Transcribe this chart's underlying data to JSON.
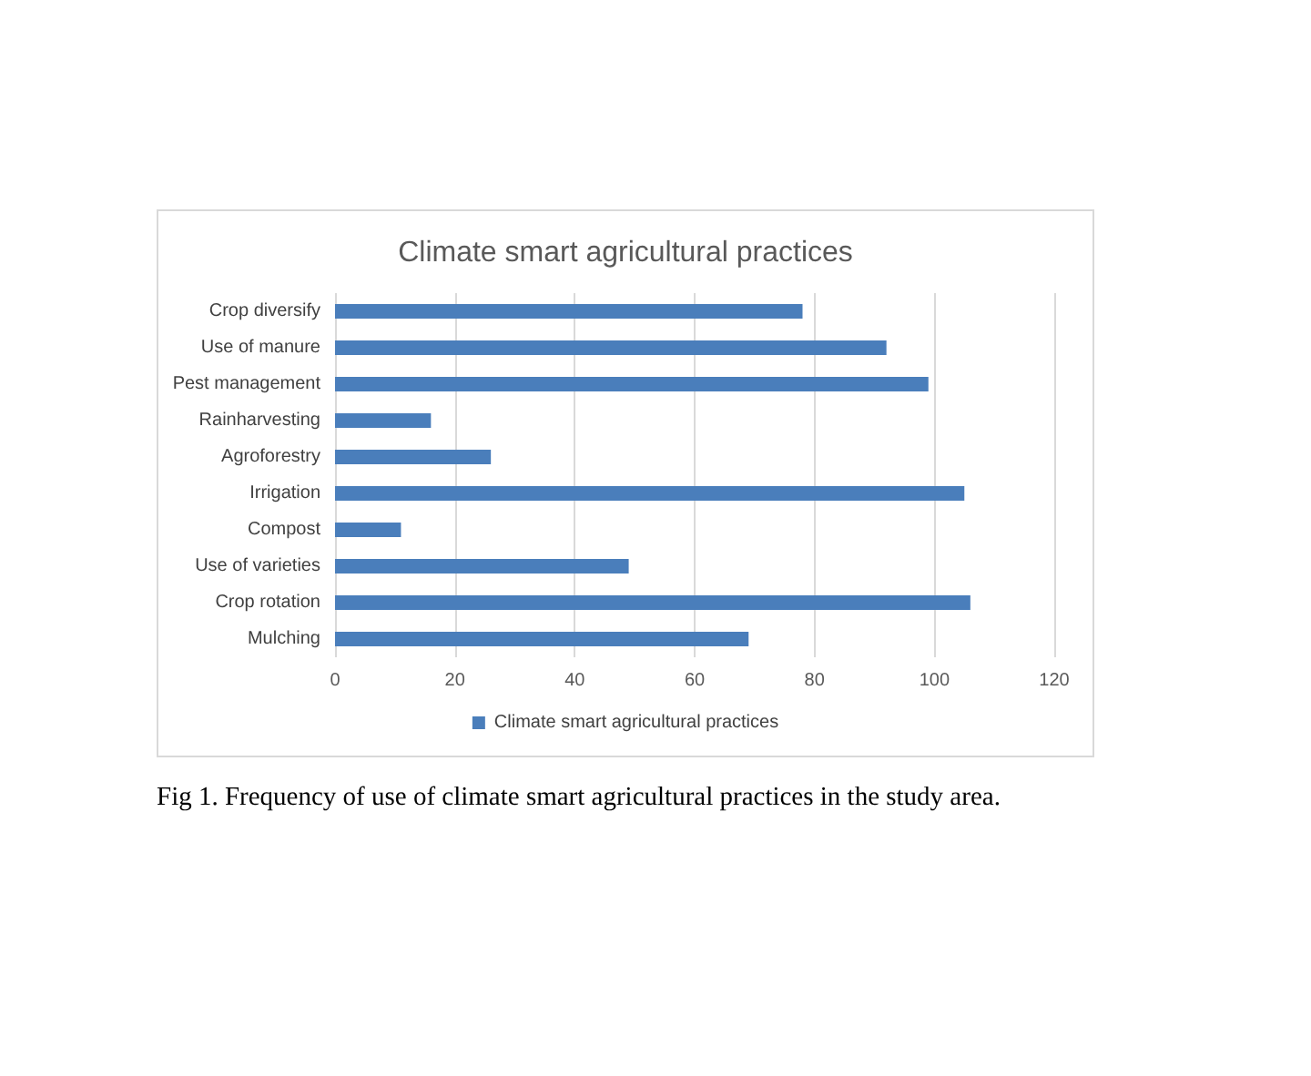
{
  "chart_data": {
    "type": "bar",
    "title": "Climate smart agricultural practices",
    "orientation": "horizontal",
    "categories": [
      "Crop diversify",
      "Use of manure",
      "Pest management",
      "Rainharvesting",
      "Agroforestry",
      "Irrigation",
      "Compost",
      "Use of varieties",
      "Crop rotation",
      "Mulching"
    ],
    "series": [
      {
        "name": "Climate smart agricultural practices",
        "color": "#4a7ebb",
        "values": [
          78,
          92,
          99,
          16,
          26,
          105,
          11,
          49,
          106,
          69
        ]
      }
    ],
    "xlim": [
      0,
      120
    ],
    "xticks": [
      0,
      20,
      40,
      60,
      80,
      100,
      120
    ],
    "grid": "x",
    "legend": "bottom",
    "annotations": [
      "Fig 1. Frequency of use of climate smart agricultural practices in the study area."
    ]
  }
}
